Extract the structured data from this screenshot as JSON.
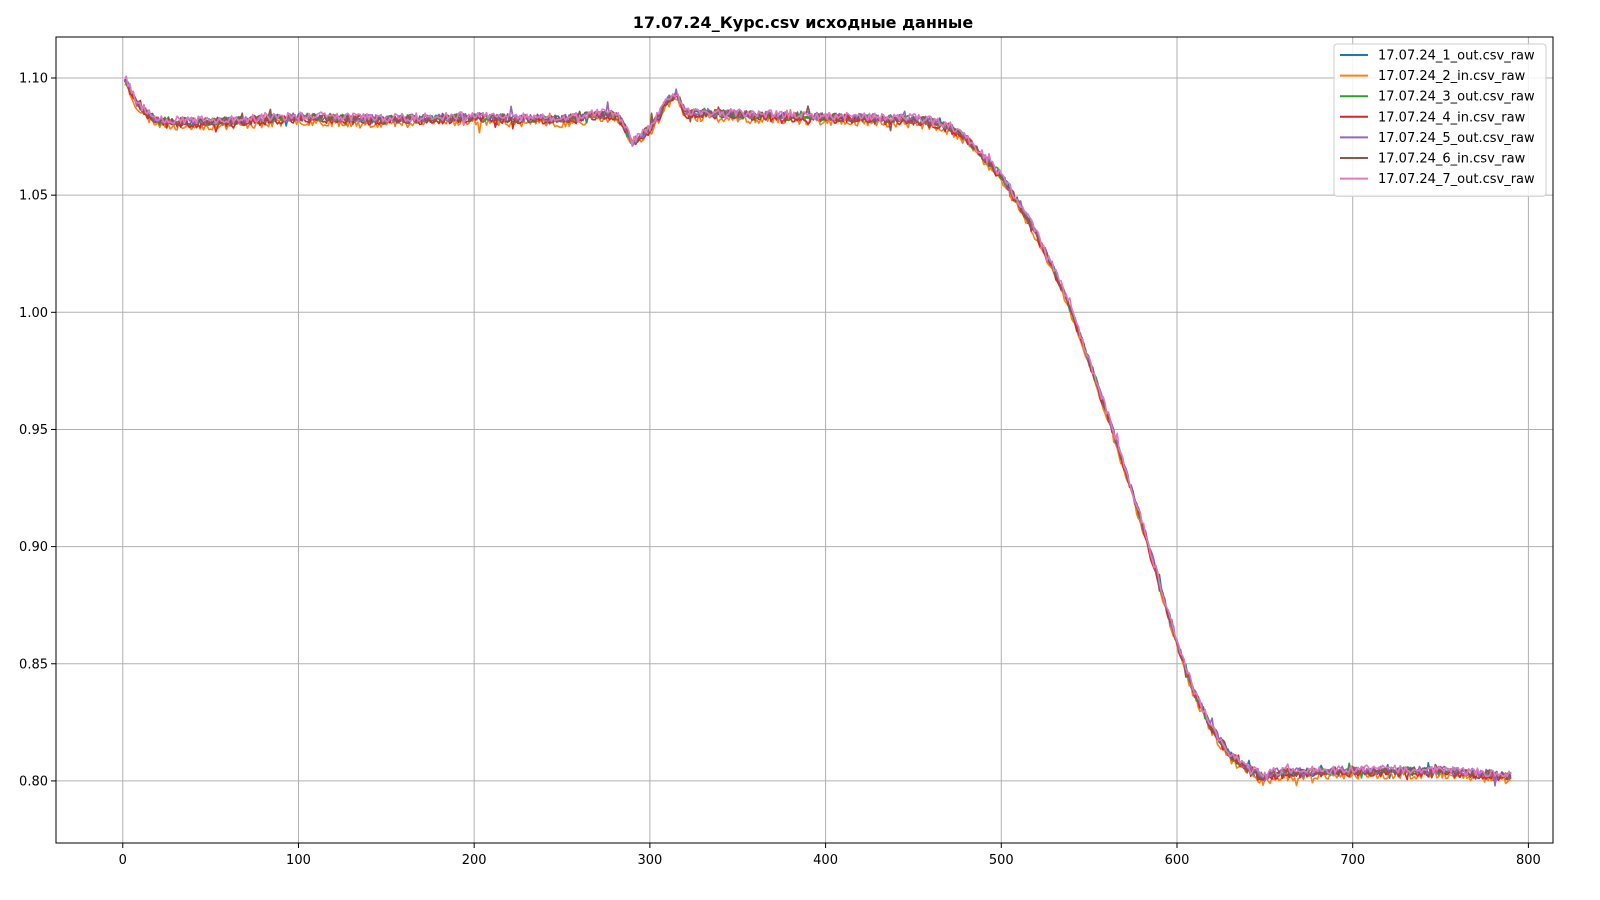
{
  "chart_data": {
    "type": "line",
    "title": "17.07.24_Курс.csv исходные данные",
    "xlabel": "",
    "ylabel": "",
    "xlim": [
      -38,
      814
    ],
    "ylim": [
      0.7735,
      1.1175
    ],
    "xticks": [
      0,
      100,
      200,
      300,
      400,
      500,
      600,
      700,
      800
    ],
    "xtick_labels": [
      "0",
      "100",
      "200",
      "300",
      "400",
      "500",
      "600",
      "700",
      "800"
    ],
    "yticks": [
      0.8,
      0.85,
      0.9,
      0.95,
      1.0,
      1.05,
      1.1
    ],
    "ytick_labels": [
      "0.80",
      "0.85",
      "0.90",
      "0.95",
      "1.00",
      "1.05",
      "1.10"
    ],
    "grid": true,
    "legend_position": "top-right",
    "series_shape": {
      "x": [
        0,
        3,
        8,
        15,
        20,
        30,
        50,
        80,
        100,
        150,
        200,
        250,
        270,
        280,
        285,
        290,
        300,
        310,
        315,
        320,
        350,
        400,
        450,
        460,
        470,
        480,
        490,
        500,
        510,
        520,
        530,
        540,
        550,
        560,
        570,
        580,
        590,
        600,
        610,
        620,
        630,
        640,
        650,
        655,
        700,
        750,
        790
      ],
      "y": [
        1.101,
        1.097,
        1.089,
        1.084,
        1.082,
        1.081,
        1.081,
        1.082,
        1.083,
        1.082,
        1.083,
        1.082,
        1.084,
        1.084,
        1.08,
        1.072,
        1.078,
        1.09,
        1.093,
        1.085,
        1.084,
        1.083,
        1.082,
        1.081,
        1.079,
        1.074,
        1.066,
        1.058,
        1.046,
        1.033,
        1.018,
        1.0,
        0.979,
        0.957,
        0.934,
        0.91,
        0.884,
        0.859,
        0.837,
        0.822,
        0.811,
        0.805,
        0.801,
        0.803,
        0.804,
        0.804,
        0.802
      ]
    },
    "series": [
      {
        "name": "17.07.24_1_out.csv_raw",
        "color": "#1f77b4",
        "offset": 0.0,
        "seed": 11
      },
      {
        "name": "17.07.24_2_in.csv_raw",
        "color": "#ff7f0e",
        "offset": -0.0015,
        "seed": 23
      },
      {
        "name": "17.07.24_3_out.csv_raw",
        "color": "#2ca02c",
        "offset": 0.0003,
        "seed": 37
      },
      {
        "name": "17.07.24_4_in.csv_raw",
        "color": "#d62728",
        "offset": -0.0005,
        "seed": 41
      },
      {
        "name": "17.07.24_5_out.csv_raw",
        "color": "#9467bd",
        "offset": 0.0006,
        "seed": 53
      },
      {
        "name": "17.07.24_6_in.csv_raw",
        "color": "#8c564b",
        "offset": 0.0004,
        "seed": 67
      },
      {
        "name": "17.07.24_7_out.csv_raw",
        "color": "#e377c2",
        "offset": 0.001,
        "seed": 79
      }
    ]
  }
}
